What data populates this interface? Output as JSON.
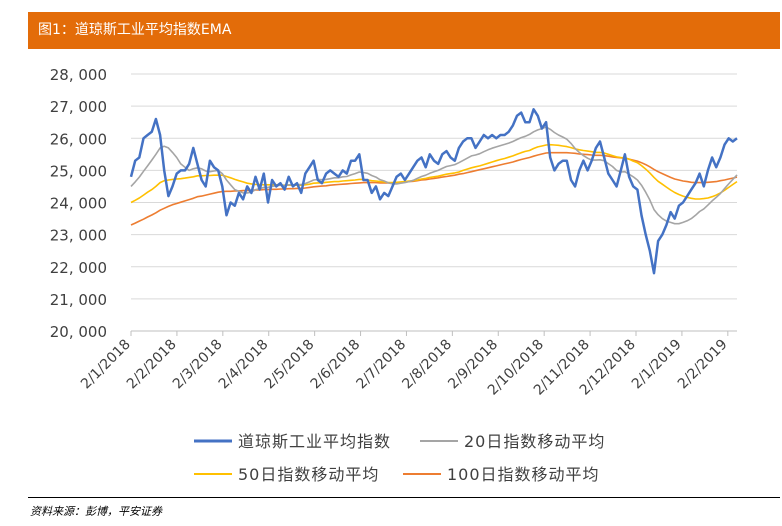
{
  "header": {
    "title": "图1：道琼斯工业平均指数EMA"
  },
  "source": "资料来源：彭博，平安证券",
  "chart_data": {
    "type": "line",
    "title": "道琼斯工业平均指数EMA",
    "xlabel": "",
    "ylabel": "",
    "ylim": [
      20000,
      28000
    ],
    "y_ticks": [
      "20, 000",
      "21, 000",
      "22, 000",
      "23, 000",
      "24, 000",
      "25, 000",
      "26, 000",
      "27, 000",
      "28, 000"
    ],
    "x_ticks": [
      "2/1/2018",
      "2/2/2018",
      "2/3/2018",
      "2/4/2018",
      "2/5/2018",
      "2/6/2018",
      "2/7/2018",
      "2/8/2018",
      "2/9/2018",
      "2/10/2018",
      "2/11/2018",
      "2/12/2018",
      "2/1/2019",
      "2/2/2019"
    ],
    "legend_position": "bottom",
    "colors": {
      "djia": "#4472C4",
      "ema20": "#A5A5A5",
      "ema50": "#FFC000",
      "ema100": "#ED7D31"
    },
    "series": [
      {
        "name": "道琼斯工业平均指数",
        "values": [
          24800,
          25300,
          25400,
          26000,
          26100,
          26200,
          26600,
          26100,
          25000,
          24200,
          24500,
          24900,
          25000,
          25000,
          25200,
          25700,
          25200,
          24700,
          24500,
          25300,
          25100,
          25000,
          24500,
          23600,
          24000,
          23900,
          24300,
          24100,
          24500,
          24300,
          24800,
          24400,
          24900,
          24000,
          24700,
          24500,
          24600,
          24400,
          24800,
          24500,
          24600,
          24300,
          24900,
          25100,
          25300,
          24700,
          24600,
          24900,
          25000,
          24900,
          24800,
          25000,
          24900,
          25300,
          25300,
          25500,
          24700,
          24700,
          24300,
          24500,
          24100,
          24300,
          24200,
          24500,
          24800,
          24900,
          24700,
          24900,
          25100,
          25300,
          25400,
          25100,
          25500,
          25300,
          25200,
          25500,
          25600,
          25400,
          25300,
          25700,
          25900,
          26000,
          26000,
          25700,
          25900,
          26100,
          26000,
          26100,
          26000,
          26100,
          26100,
          26200,
          26400,
          26700,
          26800,
          26500,
          26500,
          26900,
          26700,
          26300,
          26500,
          25400,
          25000,
          25200,
          25300,
          25300,
          24700,
          24500,
          25000,
          25300,
          25000,
          25300,
          25700,
          25900,
          25400,
          24900,
          24700,
          24500,
          25000,
          25500,
          24800,
          24500,
          24400,
          23600,
          23000,
          22500,
          21800,
          22800,
          23000,
          23300,
          23700,
          23500,
          23900,
          24000,
          24200,
          24400,
          24600,
          24900,
          24500,
          25000,
          25400,
          25100,
          25400,
          25800,
          26000,
          25900,
          26000
        ]
      },
      {
        "name": "20日指数移动平均",
        "values": [
          24500,
          24640,
          24790,
          24970,
          25140,
          25320,
          25500,
          25700,
          25750,
          25700,
          25560,
          25400,
          25200,
          25100,
          25000,
          25050,
          25080,
          25050,
          24980,
          24960,
          24980,
          25000,
          24900,
          24700,
          24550,
          24400,
          24350,
          24300,
          24300,
          24320,
          24400,
          24430,
          24470,
          24470,
          24500,
          24520,
          24540,
          24530,
          24550,
          24550,
          24560,
          24560,
          24590,
          24640,
          24700,
          24720,
          24710,
          24720,
          24740,
          24770,
          24770,
          24800,
          24810,
          24860,
          24900,
          24950,
          24930,
          24910,
          24840,
          24790,
          24710,
          24670,
          24610,
          24580,
          24580,
          24600,
          24620,
          24650,
          24690,
          24750,
          24810,
          24850,
          24910,
          24960,
          25000,
          25060,
          25120,
          25150,
          25180,
          25240,
          25310,
          25380,
          25450,
          25480,
          25520,
          25580,
          25640,
          25690,
          25730,
          25770,
          25810,
          25850,
          25900,
          25960,
          26020,
          26060,
          26120,
          26200,
          26260,
          26300,
          26350,
          26280,
          26180,
          26100,
          26040,
          25970,
          25840,
          25680,
          25560,
          25460,
          25380,
          25320,
          25320,
          25330,
          25300,
          25210,
          25120,
          25000,
          24950,
          24960,
          24880,
          24800,
          24700,
          24540,
          24320,
          24080,
          23780,
          23620,
          23500,
          23420,
          23380,
          23340,
          23340,
          23380,
          23430,
          23500,
          23600,
          23720,
          23800,
          23920,
          24050,
          24160,
          24280,
          24430,
          24580,
          24720,
          24860
        ]
      },
      {
        "name": "50日指数移动平均",
        "values": [
          24000,
          24070,
          24140,
          24230,
          24320,
          24400,
          24500,
          24620,
          24680,
          24700,
          24720,
          24730,
          24740,
          24760,
          24780,
          24800,
          24830,
          24830,
          24840,
          24840,
          24850,
          24850,
          24850,
          24810,
          24770,
          24720,
          24680,
          24640,
          24600,
          24580,
          24560,
          24560,
          24550,
          24550,
          24550,
          24550,
          24540,
          24540,
          24540,
          24540,
          24540,
          24540,
          24550,
          24570,
          24600,
          24610,
          24610,
          24630,
          24640,
          24650,
          24650,
          24670,
          24680,
          24690,
          24700,
          24720,
          24720,
          24700,
          24680,
          24670,
          24650,
          24640,
          24620,
          24620,
          24630,
          24640,
          24650,
          24670,
          24680,
          24700,
          24730,
          24750,
          24780,
          24800,
          24820,
          24850,
          24880,
          24900,
          24920,
          24950,
          25000,
          25040,
          25080,
          25110,
          25140,
          25180,
          25220,
          25260,
          25300,
          25340,
          25370,
          25410,
          25450,
          25500,
          25550,
          25590,
          25620,
          25680,
          25730,
          25760,
          25790,
          25800,
          25790,
          25780,
          25760,
          25740,
          25710,
          25670,
          25640,
          25620,
          25600,
          25580,
          25560,
          25560,
          25540,
          25500,
          25460,
          25420,
          25400,
          25390,
          25350,
          25290,
          25240,
          25150,
          25040,
          24920,
          24780,
          24660,
          24570,
          24480,
          24390,
          24310,
          24250,
          24200,
          24160,
          24130,
          24110,
          24110,
          24120,
          24140,
          24180,
          24230,
          24300,
          24380,
          24470,
          24560,
          24650
        ]
      },
      {
        "name": "100日指数移动平均",
        "values": [
          23300,
          23360,
          23420,
          23480,
          23550,
          23610,
          23680,
          23760,
          23820,
          23880,
          23930,
          23970,
          24010,
          24050,
          24090,
          24130,
          24180,
          24200,
          24230,
          24260,
          24290,
          24320,
          24340,
          24350,
          24350,
          24360,
          24360,
          24370,
          24370,
          24380,
          24390,
          24390,
          24400,
          24400,
          24410,
          24410,
          24420,
          24420,
          24430,
          24430,
          24440,
          24440,
          24450,
          24470,
          24490,
          24500,
          24510,
          24520,
          24540,
          24550,
          24560,
          24570,
          24580,
          24590,
          24600,
          24610,
          24620,
          24620,
          24620,
          24620,
          24610,
          24610,
          24610,
          24610,
          24620,
          24630,
          24640,
          24650,
          24660,
          24680,
          24700,
          24710,
          24730,
          24750,
          24770,
          24790,
          24810,
          24830,
          24850,
          24880,
          24900,
          24930,
          24960,
          24990,
          25020,
          25050,
          25080,
          25110,
          25140,
          25170,
          25200,
          25230,
          25260,
          25300,
          25340,
          25370,
          25400,
          25440,
          25480,
          25510,
          25540,
          25550,
          25550,
          25550,
          25550,
          25550,
          25540,
          25530,
          25510,
          25500,
          25490,
          25480,
          25470,
          25470,
          25460,
          25440,
          25420,
          25400,
          25390,
          25380,
          25350,
          25320,
          25290,
          25240,
          25180,
          25110,
          25030,
          24960,
          24900,
          24840,
          24780,
          24730,
          24700,
          24670,
          24650,
          24630,
          24620,
          24620,
          24620,
          24630,
          24640,
          24650,
          24680,
          24700,
          24730,
          24760,
          24790
        ]
      }
    ]
  }
}
